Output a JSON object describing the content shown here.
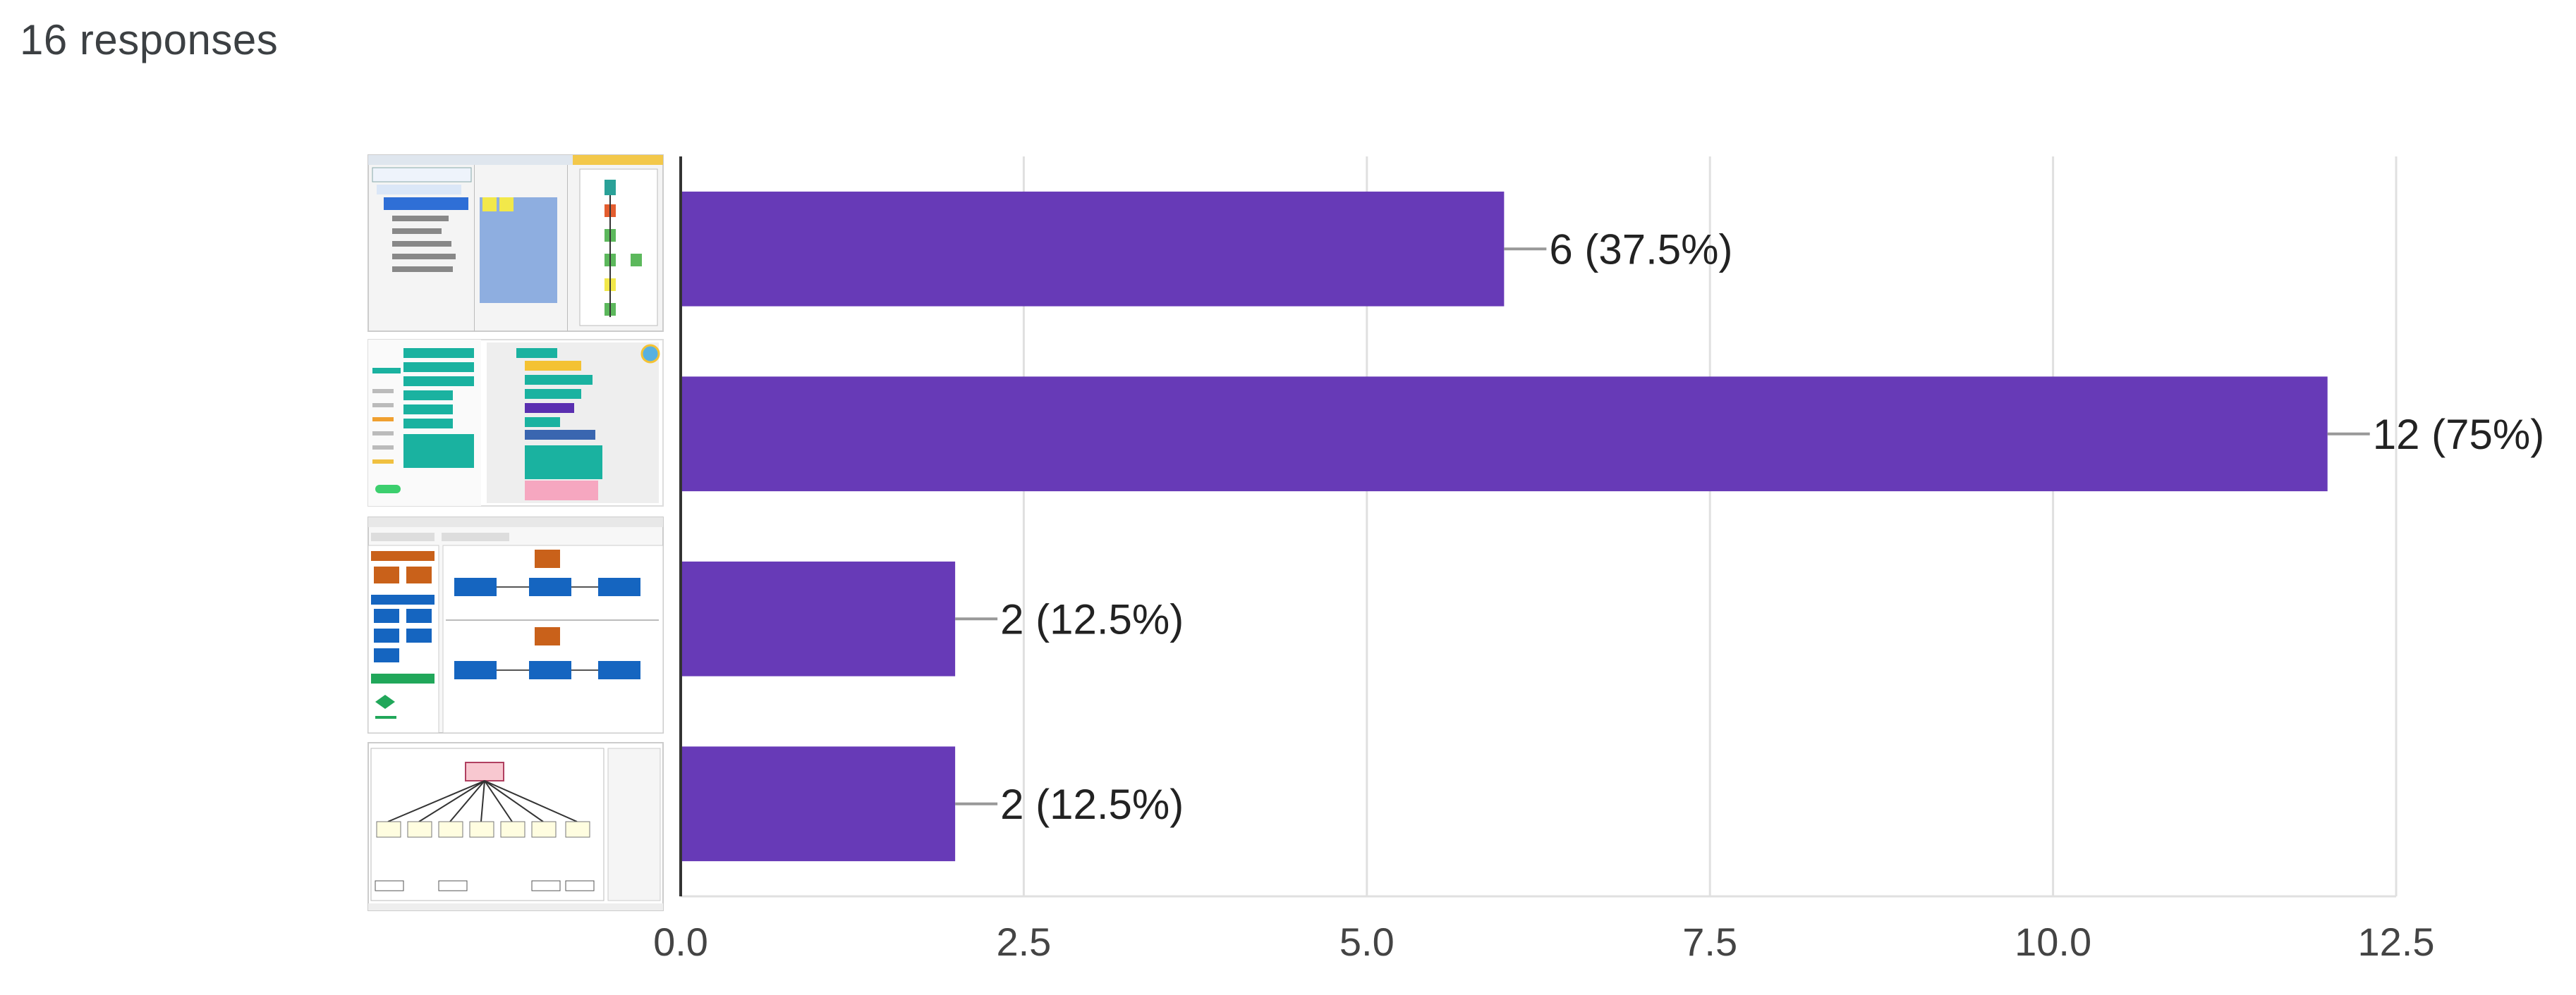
{
  "summary": {
    "responses_label": "16 responses"
  },
  "colors": {
    "bar": "#673ab7",
    "grid": "#e0e0e0",
    "axis": "#333333",
    "connector": "#999999"
  },
  "chart_data": {
    "type": "bar",
    "orientation": "horizontal",
    "categories": [
      "option-1-image",
      "option-2-image",
      "option-3-image",
      "option-4-image"
    ],
    "values": [
      6,
      12,
      2,
      2
    ],
    "data_labels": [
      "6 (37.5%)",
      "12 (75%)",
      "2 (12.5%)",
      "2 (12.5%)"
    ],
    "xlim": [
      0,
      12.5
    ],
    "xticks": [
      0,
      2.5,
      5,
      7.5,
      10,
      12.5
    ],
    "xtick_labels": [
      "0.0",
      "2.5",
      "5.0",
      "7.5",
      "10.0",
      "12.5"
    ],
    "grid": true,
    "category_labels_are_images": true
  }
}
